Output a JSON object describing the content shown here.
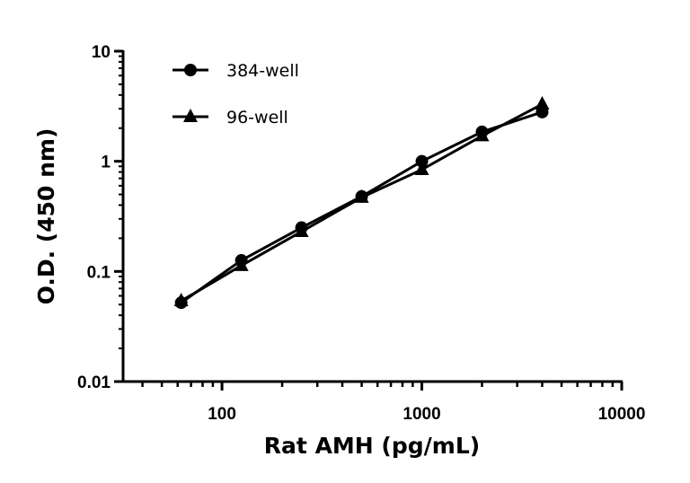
{
  "chart_data": {
    "type": "line",
    "title": "",
    "xlabel": "Rat AMH (pg/mL)",
    "ylabel": "O.D. (450 nm)",
    "xscale": "log",
    "yscale": "log",
    "xlim": [
      32,
      10000
    ],
    "ylim": [
      0.01,
      10
    ],
    "xticks": [
      {
        "value": 100,
        "label": "100"
      },
      {
        "value": 1000,
        "label": "1000"
      },
      {
        "value": 10000,
        "label": "10000"
      }
    ],
    "yticks": [
      {
        "value": 0.01,
        "label": "0.01"
      },
      {
        "value": 0.1,
        "label": "0.1"
      },
      {
        "value": 1,
        "label": "1"
      },
      {
        "value": 10,
        "label": "10"
      }
    ],
    "grid": false,
    "legend_position": "top-left",
    "x": [
      62.5,
      125,
      250,
      500,
      1000,
      2000,
      4000
    ],
    "series": [
      {
        "name": "384-well",
        "marker": "circle",
        "color": "#000000",
        "values": [
          0.052,
          0.126,
          0.25,
          0.48,
          1.0,
          1.85,
          2.8
        ]
      },
      {
        "name": "96-well",
        "marker": "triangle",
        "color": "#000000",
        "values": [
          0.054,
          0.113,
          0.23,
          0.47,
          0.84,
          1.7,
          3.3
        ]
      }
    ]
  }
}
